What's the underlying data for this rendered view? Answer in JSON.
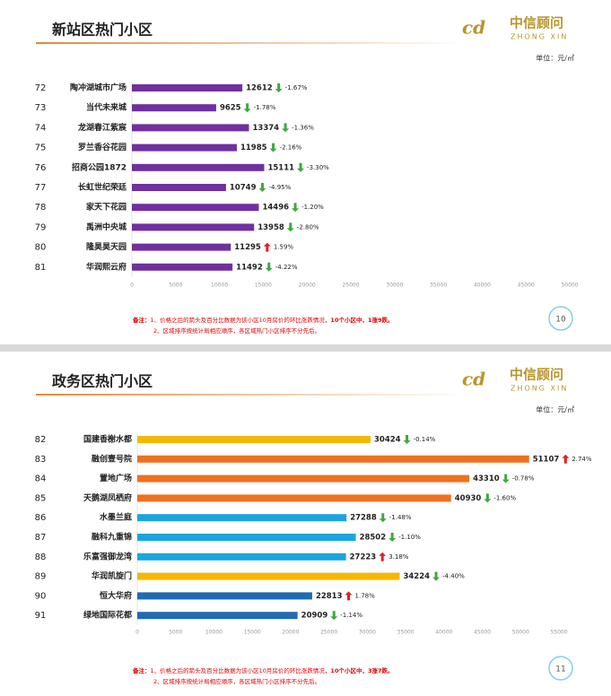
{
  "logo": {
    "text": "中信顾问",
    "sub": "ZHONG XIN"
  },
  "chart_data": [
    {
      "type": "bar",
      "orientation": "horizontal",
      "title": "新站区热门小区",
      "unit": "单位：元/㎡",
      "ranks": [
        72,
        73,
        74,
        75,
        76,
        77,
        78,
        79,
        80,
        81
      ],
      "categories": [
        "陶冲湖城市广场",
        "当代未来城",
        "龙湖春江紫宸",
        "罗兰香谷花园",
        "招商公园1872",
        "长虹世纪荣廷",
        "家天下花园",
        "禹洲中央城",
        "隆昊昊天园",
        "华润熙云府"
      ],
      "values": [
        12612,
        9625,
        13374,
        11985,
        15111,
        10749,
        14496,
        13958,
        11295,
        11492
      ],
      "colors": [
        "#7030a0",
        "#7030a0",
        "#7030a0",
        "#7030a0",
        "#7030a0",
        "#7030a0",
        "#7030a0",
        "#7030a0",
        "#7030a0",
        "#7030a0"
      ],
      "changes": [
        -1.67,
        -1.78,
        -1.36,
        -2.16,
        -3.3,
        -4.95,
        -1.2,
        -2.8,
        1.59,
        -4.22
      ],
      "change_labels": [
        "-1.67%",
        "-1.78%",
        "-1.36%",
        "-2.16%",
        "-3.30%",
        "-4.95%",
        "-1.20%",
        "-2.80%",
        "1.59%",
        "-4.22%"
      ],
      "xlim": [
        0,
        50000
      ],
      "xticks": [
        0,
        5000,
        10000,
        15000,
        20000,
        25000,
        30000,
        35000,
        40000,
        45000,
        50000
      ],
      "note_label": "备注：",
      "notes": [
        "1、价格之后的箭头及百分比数据为该小区10月房价的环比涨跌情况，",
        "2、区域排序按统计局相应顺序，各区域热门小区排序不分先后。"
      ],
      "note_summary": "10个小区中，1涨9跌。",
      "page": 10
    },
    {
      "type": "bar",
      "orientation": "horizontal",
      "title": "政务区热门小区",
      "unit": "单位：元/㎡",
      "ranks": [
        82,
        83,
        84,
        85,
        86,
        87,
        88,
        89,
        90,
        91
      ],
      "categories": [
        "国建香榭水都",
        "融创壹号院",
        "置地广场",
        "天鹅湖凤栖府",
        "水墨兰庭",
        "融科九重锦",
        "乐富强御龙湾",
        "华润凯旋门",
        "恒大华府",
        "绿地国际花都"
      ],
      "values": [
        30424,
        51107,
        43310,
        40930,
        27288,
        28502,
        27223,
        34224,
        22813,
        20909
      ],
      "colors": [
        "#f5b800",
        "#f07020",
        "#f07020",
        "#f07020",
        "#1aa5e0",
        "#1aa5e0",
        "#1aa5e0",
        "#f5b800",
        "#1f6bb5",
        "#1f6bb5"
      ],
      "changes": [
        -0.14,
        2.74,
        -0.78,
        -1.6,
        -1.48,
        -1.1,
        3.18,
        -4.4,
        1.78,
        -1.14
      ],
      "change_labels": [
        "-0.14%",
        "2.74%",
        "-0.78%",
        "-1.60%",
        "-1.48%",
        "-1.10%",
        "3.18%",
        "-4.40%",
        "1.78%",
        "-1.14%"
      ],
      "xlim": [
        0,
        55000
      ],
      "xticks": [
        0,
        5000,
        10000,
        15000,
        20000,
        25000,
        30000,
        35000,
        40000,
        45000,
        50000,
        55000
      ],
      "note_label": "备注：",
      "notes": [
        "1、价格之后的箭头及百分比数据为该小区10月房价的环比涨跌情况，",
        "2、区域排序按统计局相应顺序，各区域热门小区排序不分先后。"
      ],
      "note_summary": "10个小区中，3涨7跌。",
      "page": 11
    }
  ]
}
